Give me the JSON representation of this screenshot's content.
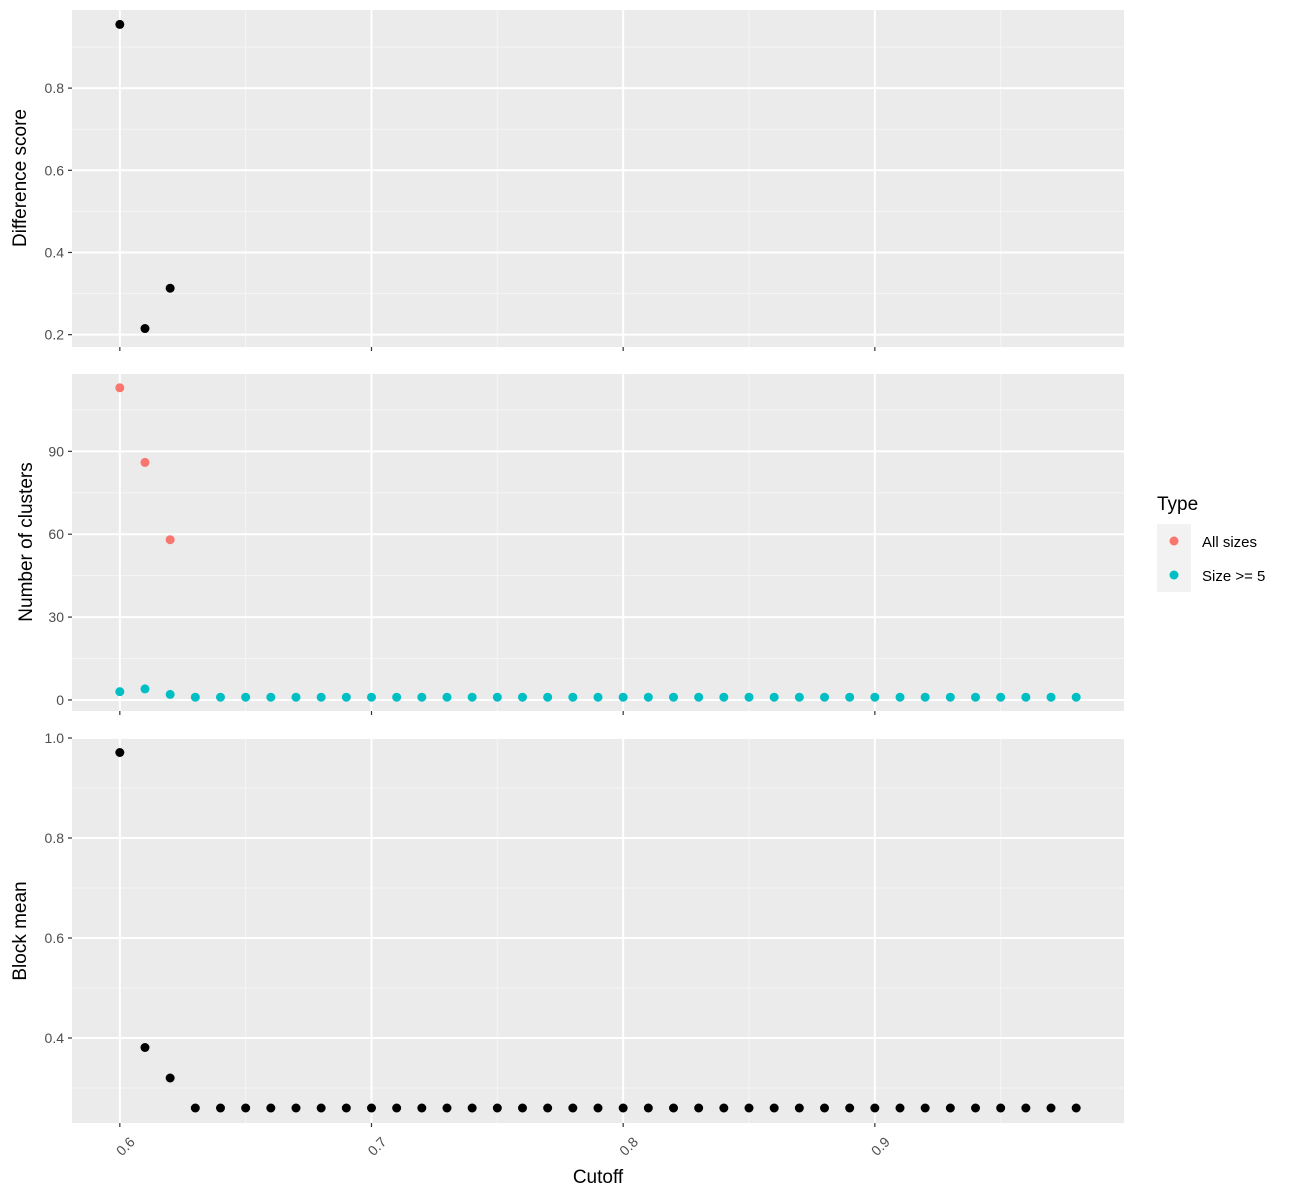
{
  "colors": {
    "panel_bg": "#EBEBEB",
    "grid_major": "#FFFFFF",
    "grid_minor": "#F5F5F5",
    "all_sizes": "#F8766D",
    "size_ge_5": "#00BFC4",
    "black_points": "#000000"
  },
  "chart_data": [
    {
      "type": "scatter",
      "panel": "top",
      "ylabel": "Difference score",
      "ylim": [
        0.17,
        0.99
      ],
      "yticks": [
        0.2,
        0.4,
        0.6,
        0.8
      ],
      "ytick_labels": [
        "0.2",
        "0.4",
        "0.6",
        "0.8"
      ],
      "grid": true,
      "series": [
        {
          "x": [
            0.6,
            0.61,
            0.62
          ],
          "y": [
            0.955,
            0.215,
            0.313
          ]
        }
      ]
    },
    {
      "type": "scatter",
      "panel": "middle",
      "ylabel": "Number of clusters",
      "ylim": [
        -4,
        118
      ],
      "yticks": [
        0,
        30,
        60,
        90
      ],
      "ytick_labels": [
        "0",
        "30",
        "60",
        "90"
      ],
      "grid": true,
      "legend": {
        "title": "Type",
        "position": "right",
        "entries": [
          {
            "label": "All sizes",
            "color": "#F8766D"
          },
          {
            "label": "Size >= 5",
            "color": "#00BFC4"
          }
        ]
      },
      "series": [
        {
          "name": "All sizes",
          "color": "#F8766D",
          "x": [
            0.6,
            0.61,
            0.62
          ],
          "y": [
            113,
            86,
            58
          ]
        },
        {
          "name": "Size >= 5",
          "color": "#00BFC4",
          "x": [
            0.6,
            0.61,
            0.62,
            0.63,
            0.64,
            0.65,
            0.66,
            0.67,
            0.68,
            0.69,
            0.7,
            0.71,
            0.72,
            0.73,
            0.74,
            0.75,
            0.76,
            0.77,
            0.78,
            0.79,
            0.8,
            0.81,
            0.82,
            0.83,
            0.84,
            0.85,
            0.86,
            0.87,
            0.88,
            0.89,
            0.9,
            0.91,
            0.92,
            0.93,
            0.94,
            0.95,
            0.96,
            0.97,
            0.98
          ],
          "y": [
            3,
            4,
            2,
            1,
            1,
            1,
            1,
            1,
            1,
            1,
            1,
            1,
            1,
            1,
            1,
            1,
            1,
            1,
            1,
            1,
            1,
            1,
            1,
            1,
            1,
            1,
            1,
            1,
            1,
            1,
            1,
            1,
            1,
            1,
            1,
            1,
            1,
            1,
            1
          ]
        }
      ]
    },
    {
      "type": "scatter",
      "panel": "bottom",
      "ylabel": "Block mean",
      "ylim": [
        0.23,
        1.0
      ],
      "yticks": [
        0.4,
        0.6,
        0.8,
        1.0
      ],
      "ytick_labels": [
        "0.4",
        "0.6",
        "0.8",
        "1.0"
      ],
      "xlabel": "Cutoff",
      "xlim": [
        0.581,
        0.999
      ],
      "xticks": [
        0.6,
        0.7,
        0.8,
        0.9
      ],
      "xtick_labels": [
        "0.6",
        "0.7",
        "0.8",
        "0.9"
      ],
      "grid": true,
      "series": [
        {
          "x": [
            0.6,
            0.61,
            0.62,
            0.63,
            0.64,
            0.65,
            0.66,
            0.67,
            0.68,
            0.69,
            0.7,
            0.71,
            0.72,
            0.73,
            0.74,
            0.75,
            0.76,
            0.77,
            0.78,
            0.79,
            0.8,
            0.81,
            0.82,
            0.83,
            0.84,
            0.85,
            0.86,
            0.87,
            0.88,
            0.89,
            0.9,
            0.91,
            0.92,
            0.93,
            0.94,
            0.95,
            0.96,
            0.97,
            0.98
          ],
          "y": [
            0.971,
            0.381,
            0.32,
            0.26,
            0.26,
            0.26,
            0.26,
            0.26,
            0.26,
            0.26,
            0.26,
            0.26,
            0.26,
            0.26,
            0.26,
            0.26,
            0.26,
            0.26,
            0.26,
            0.26,
            0.26,
            0.26,
            0.26,
            0.26,
            0.26,
            0.26,
            0.26,
            0.26,
            0.26,
            0.26,
            0.26,
            0.26,
            0.26,
            0.26,
            0.26,
            0.26,
            0.26,
            0.26,
            0.26
          ]
        }
      ]
    }
  ]
}
